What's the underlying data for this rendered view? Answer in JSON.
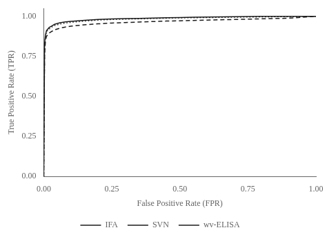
{
  "chart_data": {
    "type": "line",
    "xlabel": "False Positive Rate (FPR)",
    "ylabel": "True Positive Rate (TPR)",
    "x": [
      0.0,
      0.003,
      0.006,
      0.01,
      0.02,
      0.03,
      0.04,
      0.06,
      0.08,
      0.1,
      0.15,
      0.2,
      0.25,
      0.3,
      0.35,
      0.4,
      0.45,
      0.5,
      0.55,
      0.6,
      0.65,
      0.7,
      0.75,
      0.8,
      0.85,
      0.9,
      0.95,
      1.0
    ],
    "series": [
      {
        "name": "IFA",
        "color": "#1a1a1a",
        "line_style": "dashed",
        "values": [
          0.0,
          0.76,
          0.84,
          0.875,
          0.895,
          0.906,
          0.915,
          0.926,
          0.933,
          0.938,
          0.947,
          0.953,
          0.958,
          0.961,
          0.964,
          0.967,
          0.97,
          0.972,
          0.974,
          0.976,
          0.978,
          0.98,
          0.982,
          0.984,
          0.986,
          0.988,
          0.994,
          1.0
        ]
      },
      {
        "name": "SVN",
        "color": "#1a1a1a",
        "line_style": "dotted",
        "values": [
          0.0,
          0.8,
          0.87,
          0.905,
          0.92,
          0.933,
          0.942,
          0.952,
          0.958,
          0.962,
          0.97,
          0.976,
          0.98,
          0.982,
          0.984,
          0.986,
          0.988,
          0.99,
          0.991,
          0.992,
          0.993,
          0.994,
          0.995,
          0.996,
          0.997,
          0.998,
          0.999,
          1.0
        ]
      },
      {
        "name": "wv-ELISA",
        "color": "#1a1a1a",
        "line_style": "solid",
        "values": [
          0.0,
          0.83,
          0.88,
          0.91,
          0.93,
          0.94,
          0.95,
          0.96,
          0.965,
          0.968,
          0.975,
          0.98,
          0.983,
          0.985,
          0.987,
          0.989,
          0.991,
          0.992,
          0.994,
          0.995,
          0.996,
          0.997,
          0.998,
          0.999,
          0.999,
          1.0,
          1.0,
          1.0
        ]
      }
    ],
    "xlim": [
      0.0,
      1.0
    ],
    "ylim": [
      0.0,
      1.05
    ],
    "xticks": [
      {
        "value": 0.0,
        "label": "0.00"
      },
      {
        "value": 0.25,
        "label": "0.25"
      },
      {
        "value": 0.5,
        "label": "0.50"
      },
      {
        "value": 0.75,
        "label": "0.75"
      },
      {
        "value": 1.0,
        "label": "1.00"
      }
    ],
    "yticks": [
      {
        "value": 0.0,
        "label": "0.00"
      },
      {
        "value": 0.25,
        "label": "0.25"
      },
      {
        "value": 0.5,
        "label": "0.50"
      },
      {
        "value": 0.75,
        "label": "0.75"
      },
      {
        "value": 1.0,
        "label": "1.00"
      }
    ],
    "grid": false,
    "legend": "bottom"
  }
}
